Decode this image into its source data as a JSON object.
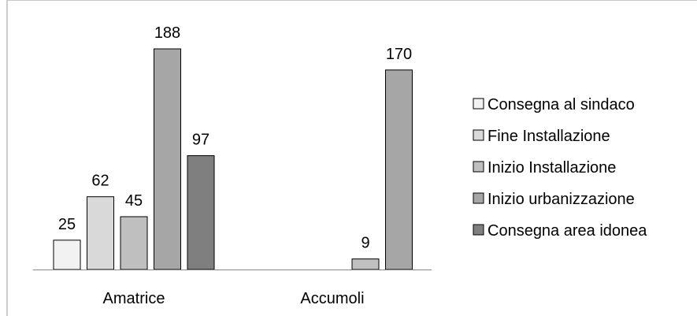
{
  "chart_data": {
    "type": "bar",
    "categories": [
      "Amatrice",
      "Accumoli"
    ],
    "series": [
      {
        "name": "Consegna al sindaco",
        "values": [
          25,
          null
        ],
        "color": "#f2f2f2"
      },
      {
        "name": "Fine Installazione",
        "values": [
          62,
          null
        ],
        "color": "#d9d9d9"
      },
      {
        "name": "Inizio Installazione",
        "values": [
          45,
          9
        ],
        "color": "#bfbfbf"
      },
      {
        "name": "Inizio urbanizzazione",
        "values": [
          188,
          170
        ],
        "color": "#a6a6a6"
      },
      {
        "name": "Consegna area idonea",
        "values": [
          97,
          null
        ],
        "color": "#7f7f7f"
      }
    ],
    "title": "",
    "xlabel": "",
    "ylabel": "",
    "ylim": [
      0,
      200
    ],
    "grid": false,
    "legend": "right",
    "data_labels": true
  }
}
